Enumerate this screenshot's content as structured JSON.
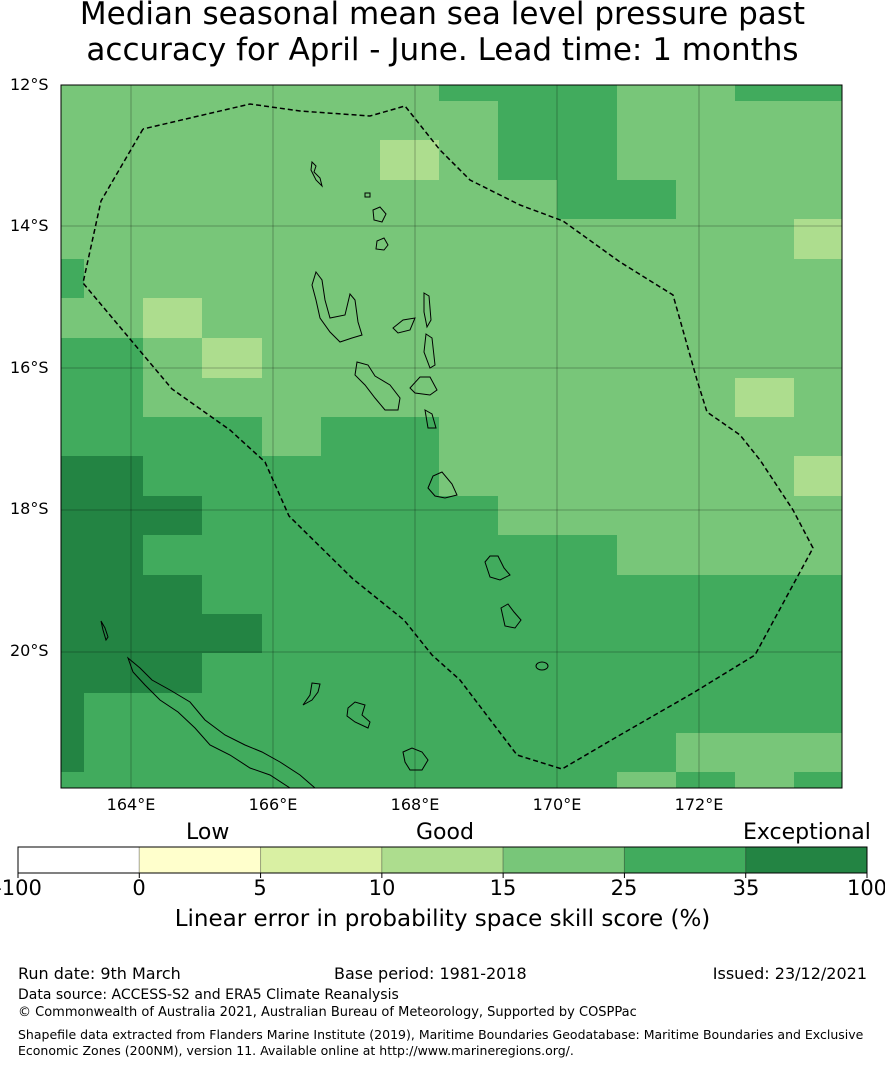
{
  "title": {
    "line1": "Median seasonal mean sea level pressure past",
    "line2": "accuracy for April - June. Lead time: 1 months"
  },
  "map": {
    "lat_labels": [
      "12°S",
      "14°S",
      "16°S",
      "18°S",
      "20°S"
    ],
    "lon_labels": [
      "164°E",
      "166°E",
      "168°E",
      "170°E",
      "172°E"
    ],
    "category_colors": {
      "p": "#addd8e",
      "m": "#78c679",
      "d": "#41ab5d",
      "x": "#238443"
    },
    "grid_categories": [
      "mmmmmmmdddmmdd",
      "mmmmmmmmddmmmm",
      "mmmmmmpmddmmmm",
      "mmmmmmmmmddmmm",
      "mmmmmmmmmmmmmp",
      "dmmmmmmmmmmmmm",
      "mmpmmmmmmmmmmm",
      "ddmpmmmmmmmmmm",
      "ddmmmmmmmmmmpm",
      "ddddmddmmmmmmm",
      "xxdddddmmmmmmp",
      "xxxdddddmmmmmm",
      "xxddddddddmmmm",
      "xxxddddddddddd",
      "xxxxdddddddddd",
      "xxxddddddddddd",
      "xddddddddddddd",
      "xddddddddddmmm",
      "ddddddddddmdmd"
    ]
  },
  "colorbar": {
    "categories": [
      "Low",
      "Good",
      "Exceptional"
    ],
    "ticks": [
      "-100",
      "0",
      "5",
      "10",
      "15",
      "25",
      "35",
      "100"
    ],
    "colors": [
      "#ffffff",
      "#ffffcc",
      "#d9f0a3",
      "#addd8e",
      "#78c679",
      "#41ab5d",
      "#238443"
    ],
    "label": "Linear error in probability space skill score (%)"
  },
  "footer": {
    "run_date": "Run date: 9th March",
    "base_period": "Base period: 1981-2018",
    "issued": "Issued: 23/12/2021",
    "data_source": "Data source: ACCESS-S2 and ERA5 Climate Reanalysis",
    "copyright": "© Commonwealth of Australia 2021, Australian Bureau of Meteorology, Supported by COSPPac",
    "shapefile_line1": "Shapefile data extracted from Flanders Marine Institute (2019), Maritime Boundaries Geodatabase: Maritime Boundaries and Exclusive",
    "shapefile_line2": "Economic Zones (200NM), version 11. Available online at http://www.marineregions.org/."
  }
}
